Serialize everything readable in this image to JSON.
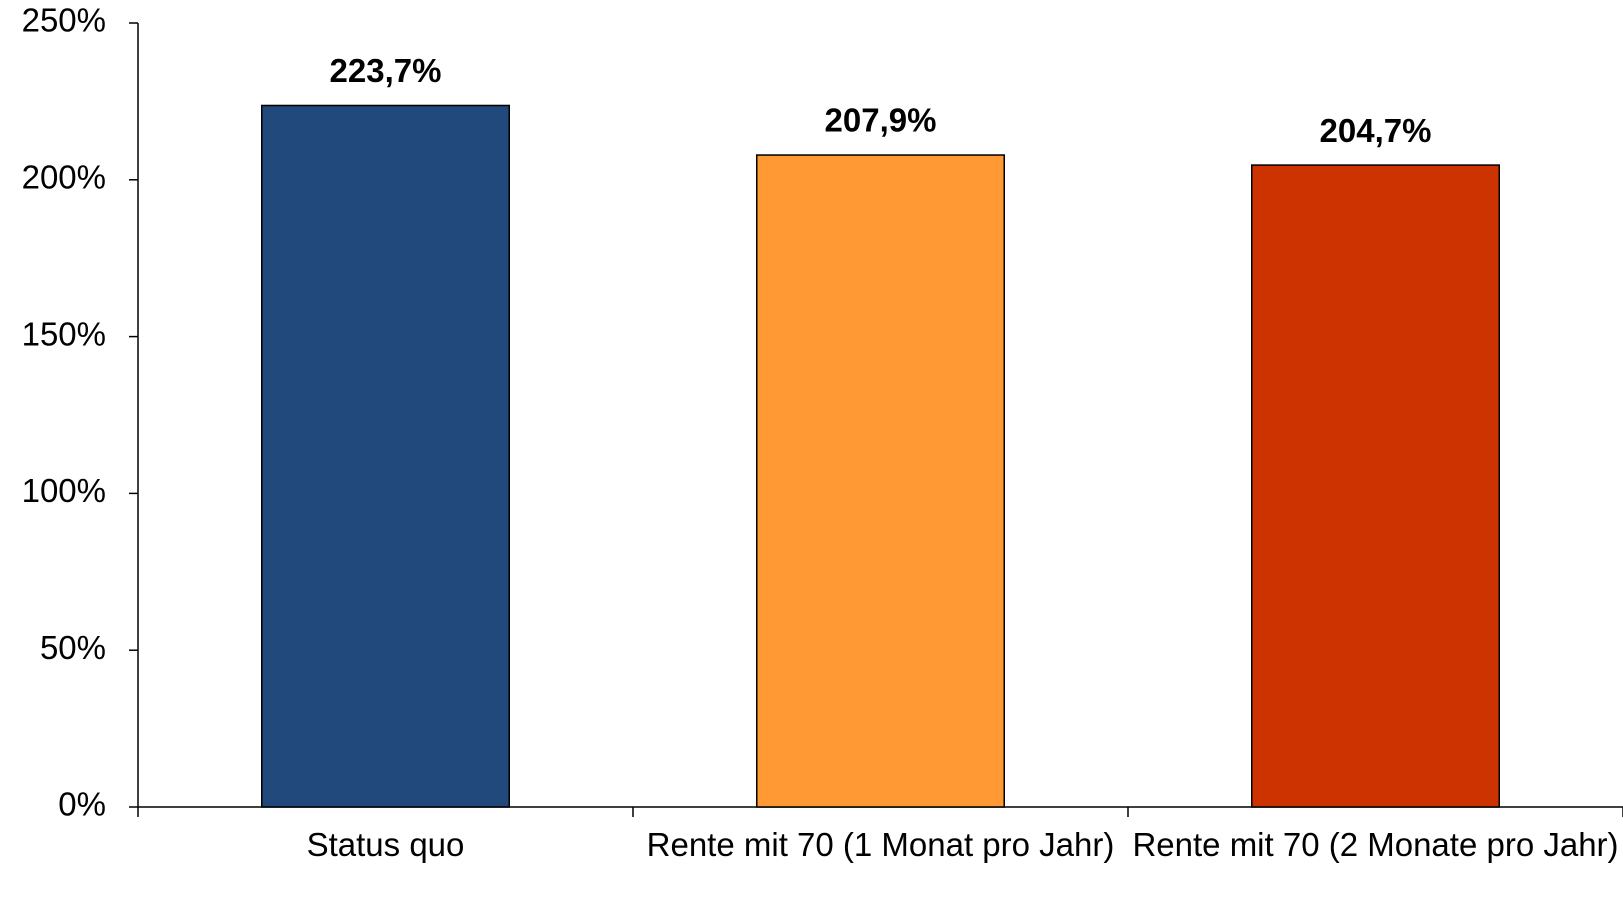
{
  "chart_data": {
    "type": "bar",
    "categories": [
      "Status quo",
      "Rente mit 70 (1 Monat pro Jahr)",
      "Rente mit 70 (2 Monate pro Jahr)"
    ],
    "values": [
      223.7,
      207.9,
      204.7
    ],
    "value_labels": [
      "223,7%",
      "207,9%",
      "204,7%"
    ],
    "colors": [
      "#21497b",
      "#ff9933",
      "#cc3300"
    ],
    "ylim": [
      0,
      250
    ],
    "yticks": [
      {
        "value": 0,
        "label": "0%"
      },
      {
        "value": 50,
        "label": "50%"
      },
      {
        "value": 100,
        "label": "100%"
      },
      {
        "value": 150,
        "label": "150%"
      },
      {
        "value": 200,
        "label": "200%"
      },
      {
        "value": 250,
        "label": "250%"
      }
    ],
    "grid": false
  }
}
